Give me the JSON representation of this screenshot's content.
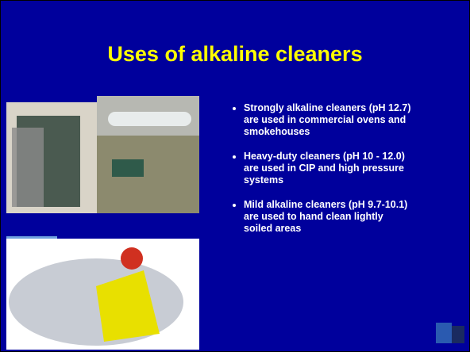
{
  "title": "Uses of alkaline cleaners",
  "bullets": [
    "Strongly alkaline cleaners (pH 12.7) are used in commercial ovens and smokehouses",
    "Heavy-duty cleaners (pH 10 - 12.0) are used in CIP and high pressure systems",
    "Mild alkaline cleaners (pH 9.7-10.1) are used to hand clean lightly soiled areas"
  ]
}
